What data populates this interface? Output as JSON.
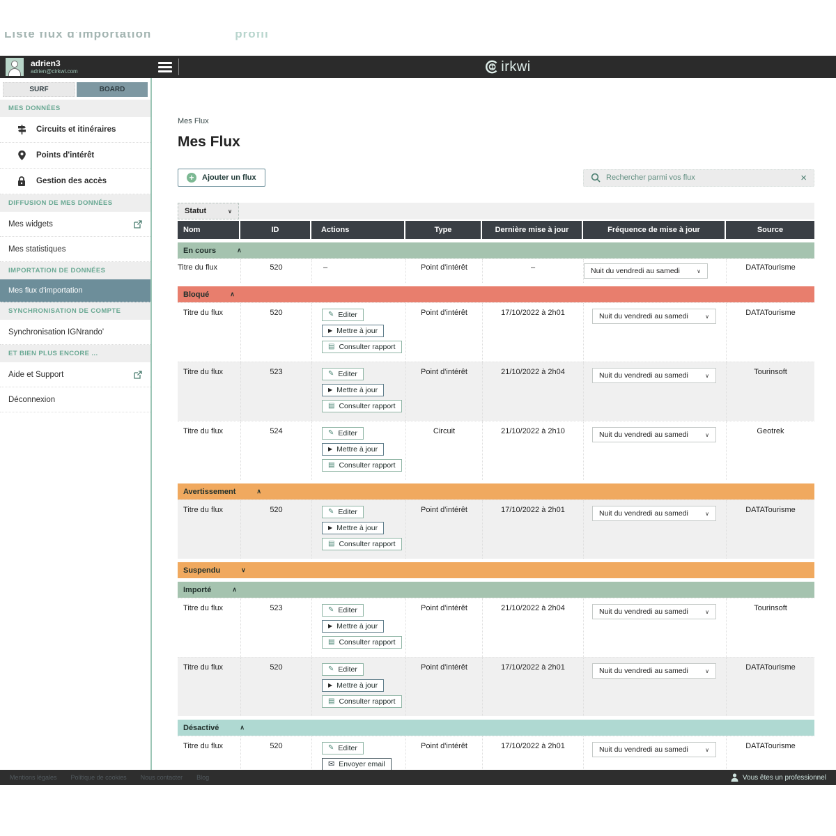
{
  "decor": {
    "left_fragment": "Liste flux d'importation",
    "right_fragment": "profil"
  },
  "topbar": {
    "user": {
      "name": "adrien3",
      "email": "adrien@cirkwi.com"
    },
    "logo_text": "irkwi"
  },
  "sidebar": {
    "tabs": [
      {
        "key": "surf",
        "label": "SURF"
      },
      {
        "key": "board",
        "label": "BOARD"
      }
    ],
    "blocks": [
      {
        "type": "section",
        "key": "mes-donnees",
        "label": "MES DONNÉES"
      },
      {
        "type": "item",
        "key": "circuits",
        "label": "Circuits et itinéraires",
        "icon": "signpost-icon",
        "bold": true
      },
      {
        "type": "item",
        "key": "points-interet",
        "label": "Points d'intérêt",
        "icon": "map-pin-icon",
        "bold": true
      },
      {
        "type": "item",
        "key": "gestion-acces",
        "label": "Gestion des accès",
        "icon": "lock-icon",
        "bold": true
      },
      {
        "type": "section",
        "key": "diffusion",
        "label": "DIFFUSION DE MES DONNÉES"
      },
      {
        "type": "item",
        "key": "mes-widgets",
        "label": "Mes widgets",
        "external": true
      },
      {
        "type": "item",
        "key": "mes-statistiques",
        "label": "Mes statistiques"
      },
      {
        "type": "section",
        "key": "importation",
        "label": "IMPORTATION DE DONNÉES"
      },
      {
        "type": "item",
        "key": "mes-flux",
        "label": "Mes flux d'importation",
        "active": true
      },
      {
        "type": "section",
        "key": "synchronisation",
        "label": "SYNCHRONISATION DE COMPTE"
      },
      {
        "type": "item",
        "key": "sync-ignrando",
        "label": "Synchronisation IGNrando'"
      },
      {
        "type": "section",
        "key": "et-bien-plus",
        "label": "ET BIEN PLUS ENCORE ..."
      },
      {
        "type": "item",
        "key": "aide-support",
        "label": "Aide et Support",
        "external": true
      },
      {
        "type": "item",
        "key": "deconnexion",
        "label": "Déconnexion"
      }
    ]
  },
  "page": {
    "breadcrumb": "Mes Flux",
    "title": "Mes Flux",
    "add_button_label": "Ajouter un flux",
    "search_placeholder": "Rechercher parmi vos flux"
  },
  "colors": {
    "accent_green": "#7cb893",
    "status_green": "#a5c3af",
    "status_red": "#e87e6d",
    "status_orange": "#f0a95f",
    "status_teal": "#afd9d2"
  },
  "table": {
    "filter_label": "Statut",
    "columns": [
      {
        "key": "nom",
        "label": "Nom"
      },
      {
        "key": "id",
        "label": "ID"
      },
      {
        "key": "actions",
        "label": "Actions"
      },
      {
        "key": "type",
        "label": "Type"
      },
      {
        "key": "updated",
        "label": "Dernière mise à jour"
      },
      {
        "key": "frequency",
        "label": "Fréquence de mise à jour"
      },
      {
        "key": "source",
        "label": "Source"
      }
    ],
    "action_defs": {
      "edit": {
        "name": "editer-button",
        "icon": "pencil-icon",
        "label": "Editer"
      },
      "update": {
        "name": "mettre-a-jour-button",
        "icon": "play-icon",
        "label": "Mettre à jour"
      },
      "report": {
        "name": "consulter-rapport-button",
        "icon": "report-icon",
        "label": "Consulter rapport"
      },
      "email": {
        "name": "envoyer-email-button",
        "icon": "mail-icon",
        "label": "Envoyer email"
      }
    },
    "groups": [
      {
        "label": "En cours",
        "key": "en-cours",
        "color": "status_green",
        "collapsed": false,
        "rows": [
          {
            "name": "Titre du flux",
            "id": "520",
            "actions": "–",
            "type": "Point d'intérêt",
            "updated": "–",
            "frequency": "Nuit du vendredi au samedi",
            "source": "DATATourisme",
            "shade": "white",
            "compact": true
          }
        ]
      },
      {
        "label": "Bloqué",
        "key": "bloque",
        "color": "status_red",
        "collapsed": false,
        "rows": [
          {
            "name": "Titre du flux",
            "id": "520",
            "actions": [
              "edit",
              "update",
              "report"
            ],
            "type": "Point d'intérêt",
            "updated": "17/10/2022 à 2h01",
            "frequency": "Nuit du vendredi au samedi",
            "source": "DATATourisme",
            "shade": "white"
          },
          {
            "name": "Titre du flux",
            "id": "523",
            "actions": [
              "edit",
              "update",
              "report"
            ],
            "type": "Point d'intérêt",
            "updated": "21/10/2022 à 2h04",
            "frequency": "Nuit du vendredi au samedi",
            "source": "Tourinsoft",
            "shade": "gray"
          },
          {
            "name": "Titre du flux",
            "id": "524",
            "actions": [
              "edit",
              "update",
              "report"
            ],
            "type": "Circuit",
            "updated": "21/10/2022 à 2h10",
            "frequency": "Nuit du vendredi au samedi",
            "source": "Geotrek",
            "shade": "white"
          }
        ]
      },
      {
        "label": "Avertissement",
        "key": "avertissement",
        "color": "status_orange",
        "collapsed": false,
        "rows": [
          {
            "name": "Titre du flux",
            "id": "520",
            "actions": [
              "edit",
              "update",
              "report"
            ],
            "type": "Point d'intérêt",
            "updated": "17/10/2022 à 2h01",
            "frequency": "Nuit du vendredi au samedi",
            "source": "DATATourisme",
            "shade": "gray"
          }
        ]
      },
      {
        "label": "Suspendu",
        "key": "suspendu",
        "color": "status_orange",
        "collapsed": true,
        "rows": []
      },
      {
        "label": "Importé",
        "key": "importe",
        "color": "status_green",
        "collapsed": false,
        "rows": [
          {
            "name": "Titre du flux",
            "id": "523",
            "actions": [
              "edit",
              "update",
              "report"
            ],
            "type": "Point d'intérêt",
            "updated": "21/10/2022 à 2h04",
            "frequency": "Nuit du vendredi au samedi",
            "source": "Tourinsoft",
            "shade": "white"
          },
          {
            "name": "Titre du flux",
            "id": "520",
            "actions": [
              "edit",
              "update",
              "report"
            ],
            "type": "Point d'intérêt",
            "updated": "17/10/2022 à 2h01",
            "frequency": "Nuit du vendredi au samedi",
            "source": "DATATourisme",
            "shade": "gray"
          }
        ]
      },
      {
        "label": "Désactivé",
        "key": "desactive",
        "color": "status_teal",
        "collapsed": false,
        "rows": [
          {
            "name": "Titre du flux",
            "id": "520",
            "actions": [
              "edit",
              "email"
            ],
            "type": "Point d'intérêt",
            "updated": "17/10/2022 à 2h01",
            "frequency": "Nuit du vendredi au samedi",
            "source": "DATATourisme",
            "shade": "white"
          }
        ]
      }
    ]
  },
  "footer": {
    "links": [
      "Mentions légales",
      "Politique de cookies",
      "Nous contacter",
      "Blog"
    ],
    "pro_label": "Vous êtes un professionnel"
  }
}
